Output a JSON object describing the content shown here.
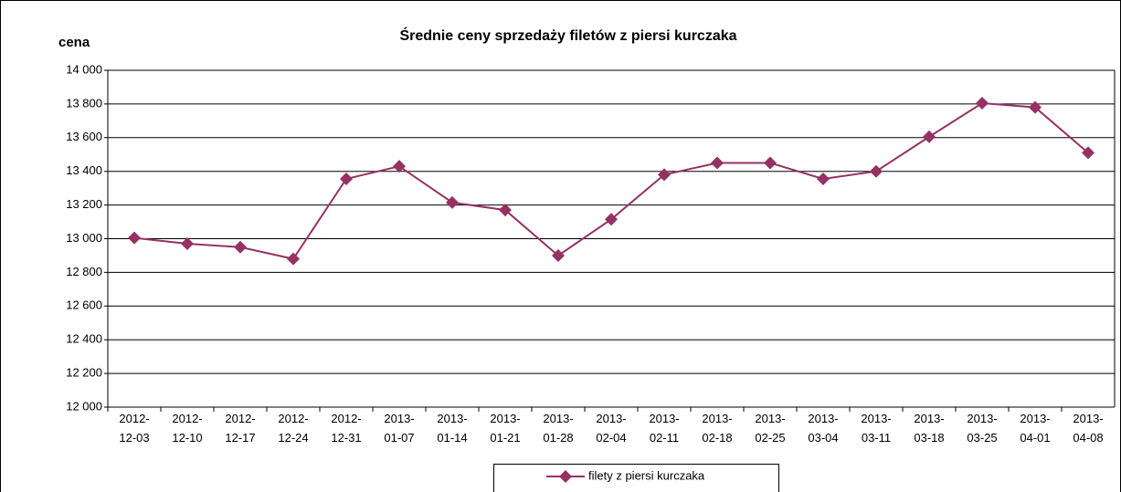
{
  "chart_data": {
    "type": "line",
    "title": "Średnie ceny sprzedaży filetów z piersi kurczaka",
    "y_label": "cena",
    "categories": [
      "2012-12-03",
      "2012-12-10",
      "2012-12-17",
      "2012-12-24",
      "2012-12-31",
      "2013-01-07",
      "2013-01-14",
      "2013-01-21",
      "2013-01-28",
      "2013-02-04",
      "2013-02-11",
      "2013-02-18",
      "2013-02-25",
      "2013-03-04",
      "2013-03-11",
      "2013-03-18",
      "2013-03-25",
      "2013-04-01",
      "2013-04-08"
    ],
    "series": [
      {
        "name": "filety z piersi kurczaka",
        "color": "#953163",
        "values": [
          13005,
          12970,
          12950,
          12880,
          13355,
          13430,
          13215,
          13170,
          12900,
          13115,
          13380,
          13450,
          13450,
          13355,
          13400,
          13605,
          13805,
          13780,
          13510
        ]
      }
    ],
    "ylim": [
      12000,
      14000
    ],
    "yticks": [
      {
        "value": 12000,
        "label": "12 000"
      },
      {
        "value": 12200,
        "label": "12 200"
      },
      {
        "value": 12400,
        "label": "12 400"
      },
      {
        "value": 12600,
        "label": "12 600"
      },
      {
        "value": 12800,
        "label": "12 800"
      },
      {
        "value": 13000,
        "label": "13 000"
      },
      {
        "value": 13200,
        "label": "13 200"
      },
      {
        "value": 13400,
        "label": "13 400"
      },
      {
        "value": 13600,
        "label": "13 600"
      },
      {
        "value": 13800,
        "label": "13 800"
      },
      {
        "value": 14000,
        "label": "14 000"
      }
    ],
    "grid": true,
    "legend": "bottom"
  }
}
